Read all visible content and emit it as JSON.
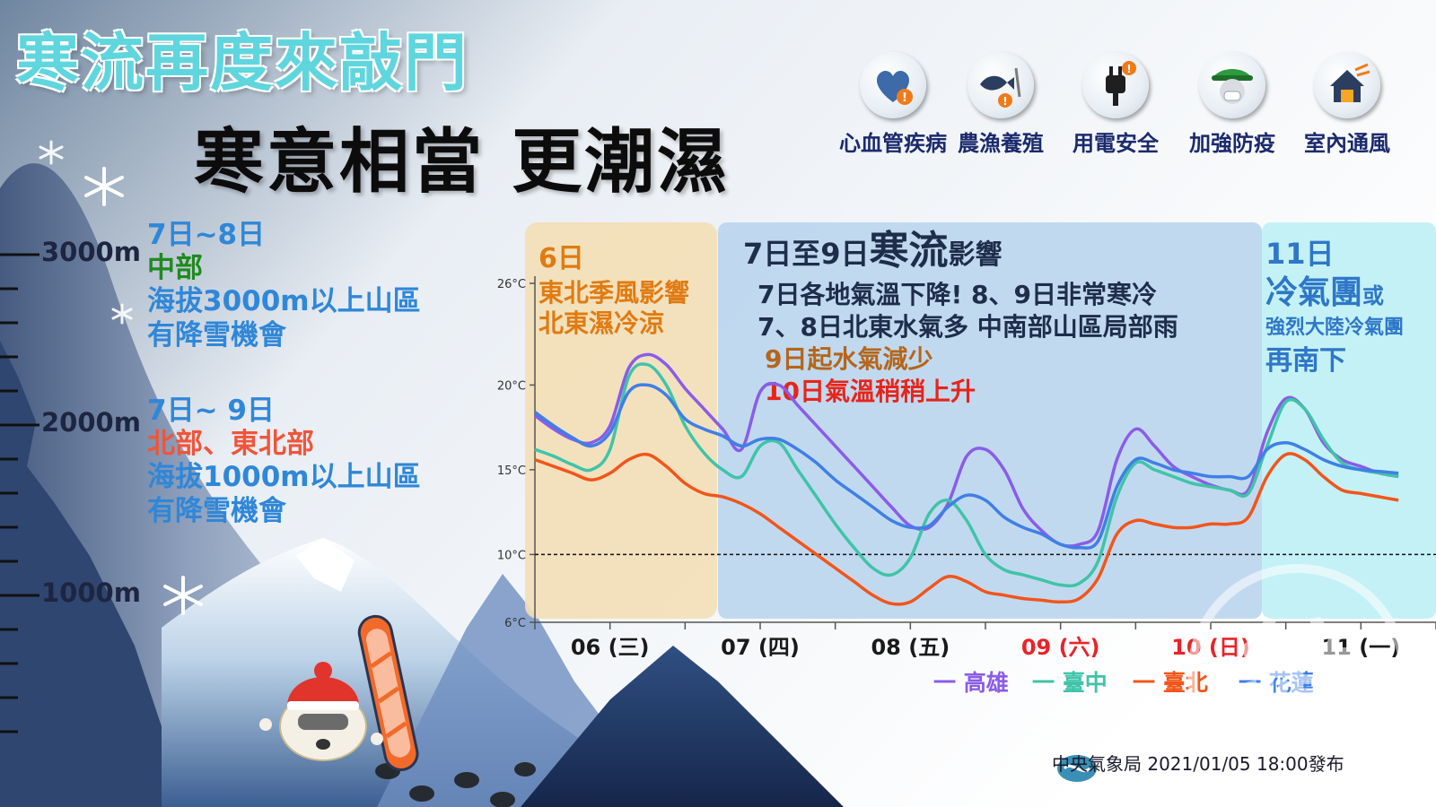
{
  "title": "寒流再度來敲門",
  "subtitle": "寒意相當  更潮濕",
  "hints": [
    {
      "label": "心血管疾病",
      "icon": "heart-warning-icon"
    },
    {
      "label": "農漁養殖",
      "icon": "fish-grain-icon"
    },
    {
      "label": "用電安全",
      "icon": "plug-warning-icon"
    },
    {
      "label": "加強防疫",
      "icon": "mask-icon"
    },
    {
      "label": "室內通風",
      "icon": "house-ventilation-icon"
    }
  ],
  "altitude_labels": [
    "3000m",
    "2000m",
    "1000m"
  ],
  "snow_notes": [
    {
      "date": "7日~8日",
      "region": "中部",
      "line1": "海拔3000m以上山區",
      "line2": "有降雪機會"
    },
    {
      "date": "7日~ 9日",
      "region": "北部、東北部",
      "line1": "海拔1000m以上山區",
      "line2": "有降雪機會"
    }
  ],
  "panels": [
    {
      "heading": "6日",
      "lines": [
        "東北季風影響",
        "北東濕冷涼"
      ]
    },
    {
      "heading_pre": "7日至9日",
      "heading_big": "寒流",
      "heading_post": "影響",
      "lines": [
        "7日各地氣溫下降! 8、9日非常寒冷",
        "7、8日北東水氣多  中南部山區局部雨",
        "9日起水氣減少",
        "10日氣溫稍稍上升"
      ]
    },
    {
      "heading": "11日",
      "big": "冷氣團",
      "small": "或",
      "lines": [
        "強烈大陸冷氣團",
        "再南下"
      ]
    }
  ],
  "legend": [
    "一 高雄",
    "一 臺中",
    "一 臺北",
    "一 花蓮"
  ],
  "footer": "中央氣象局  2021/01/05 18:00發布",
  "colors": {
    "kaohsiung": "#8a5ce8",
    "taichung": "#3fc4a8",
    "taipei": "#f2551a",
    "hualien": "#3f7fe6"
  },
  "chart_data": {
    "type": "line",
    "title": "",
    "xlabel": "",
    "ylabel": "",
    "ylim": [
      6,
      26
    ],
    "yticks": [
      "26°C",
      "20°C",
      "15°C",
      "10°C",
      "6°C"
    ],
    "ytick_values": [
      26,
      20,
      15,
      10,
      6
    ],
    "reference_line": 10,
    "xtick_labels": [
      "06 (三)",
      "07 (四)",
      "08 (五)",
      "09 (六)",
      "10 (日)",
      "11 (一)"
    ],
    "weekend_color": "#e8242a",
    "x": [
      0,
      3,
      6,
      9,
      12,
      15,
      18,
      21,
      24,
      27,
      30,
      33,
      36,
      39,
      42,
      45,
      48,
      51,
      54,
      57,
      60,
      63,
      66,
      69,
      72,
      75,
      78,
      81,
      84,
      87,
      90,
      93,
      96,
      99,
      102,
      105,
      108,
      111,
      114,
      117,
      120,
      123,
      126,
      129,
      132,
      135,
      138
    ],
    "series": [
      {
        "name": "高雄",
        "values": [
          18.2,
          17.4,
          16.8,
          16.6,
          17.6,
          21.0,
          21.8,
          21.2,
          19.8,
          18.6,
          17.4,
          16.2,
          19.6,
          20.0,
          18.8,
          17.6,
          16.4,
          15.2,
          14.0,
          12.8,
          11.7,
          11.6,
          13.0,
          15.8,
          16.2,
          15.0,
          12.7,
          11.4,
          10.6,
          10.6,
          11.4,
          15.6,
          17.4,
          16.4,
          15.2,
          14.6,
          14.1,
          13.8,
          13.8,
          17.2,
          19.2,
          18.6,
          16.6,
          15.6,
          15.2,
          14.8,
          14.6
        ]
      },
      {
        "name": "臺中",
        "values": [
          16.2,
          15.8,
          15.3,
          15.0,
          16.2,
          20.5,
          21.2,
          20.0,
          17.6,
          16.0,
          15.0,
          14.6,
          16.4,
          16.6,
          15.0,
          13.4,
          11.8,
          10.4,
          9.2,
          8.8,
          9.8,
          12.4,
          13.2,
          12.0,
          10.0,
          9.1,
          8.8,
          8.5,
          8.2,
          8.3,
          9.6,
          13.4,
          15.4,
          15.0,
          14.6,
          14.2,
          14.0,
          13.8,
          13.6,
          16.4,
          19.0,
          18.6,
          16.8,
          15.4,
          15.0,
          14.8,
          14.6
        ]
      },
      {
        "name": "臺北",
        "values": [
          15.6,
          15.2,
          14.8,
          14.4,
          14.8,
          15.6,
          15.9,
          15.2,
          14.2,
          13.6,
          13.4,
          13.0,
          12.4,
          11.6,
          10.8,
          10.0,
          9.2,
          8.4,
          7.6,
          7.1,
          7.2,
          8.0,
          8.7,
          8.4,
          7.8,
          7.6,
          7.4,
          7.3,
          7.2,
          7.4,
          8.6,
          11.2,
          12.0,
          11.8,
          11.6,
          11.6,
          11.8,
          11.8,
          12.2,
          14.6,
          15.9,
          15.6,
          14.6,
          13.8,
          13.6,
          13.4,
          13.2
        ]
      },
      {
        "name": "花蓮",
        "values": [
          18.4,
          17.6,
          16.9,
          16.4,
          17.2,
          19.6,
          20.0,
          19.4,
          18.0,
          17.4,
          17.0,
          16.4,
          16.8,
          16.8,
          16.2,
          15.4,
          14.4,
          13.6,
          12.8,
          12.0,
          11.6,
          11.7,
          12.8,
          13.5,
          13.2,
          12.2,
          11.6,
          11.2,
          10.6,
          10.4,
          10.8,
          14.0,
          15.6,
          15.4,
          15.0,
          14.8,
          14.6,
          14.6,
          14.6,
          16.2,
          16.6,
          16.2,
          15.6,
          15.2,
          15.0,
          14.9,
          14.8
        ]
      }
    ]
  }
}
